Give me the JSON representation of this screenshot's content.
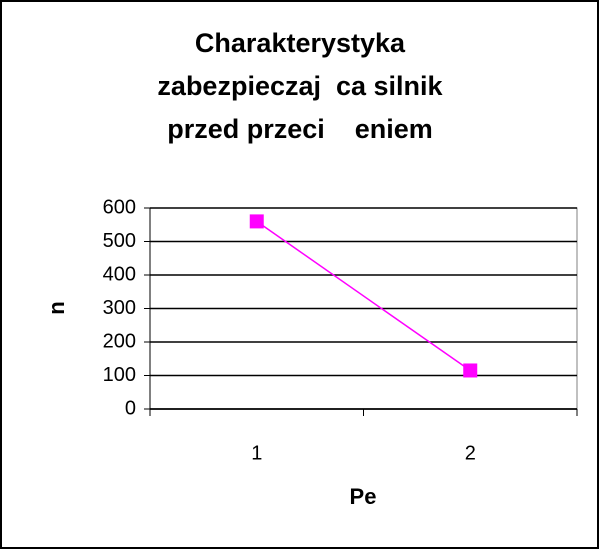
{
  "chart_data": {
    "type": "line",
    "title": [
      "Charakterystyka",
      "zabezpieczaj  ca silnik",
      "przed przeci    eniem"
    ],
    "x_label": "Pe",
    "y_label": "n",
    "categories": [
      "1",
      "2"
    ],
    "series": [
      {
        "name": "n",
        "color": "#ff00ff",
        "values": [
          560,
          115
        ]
      }
    ],
    "ylim": [
      0,
      600
    ],
    "yticks": [
      0,
      100,
      200,
      300,
      400,
      500,
      600
    ],
    "grid": true
  }
}
